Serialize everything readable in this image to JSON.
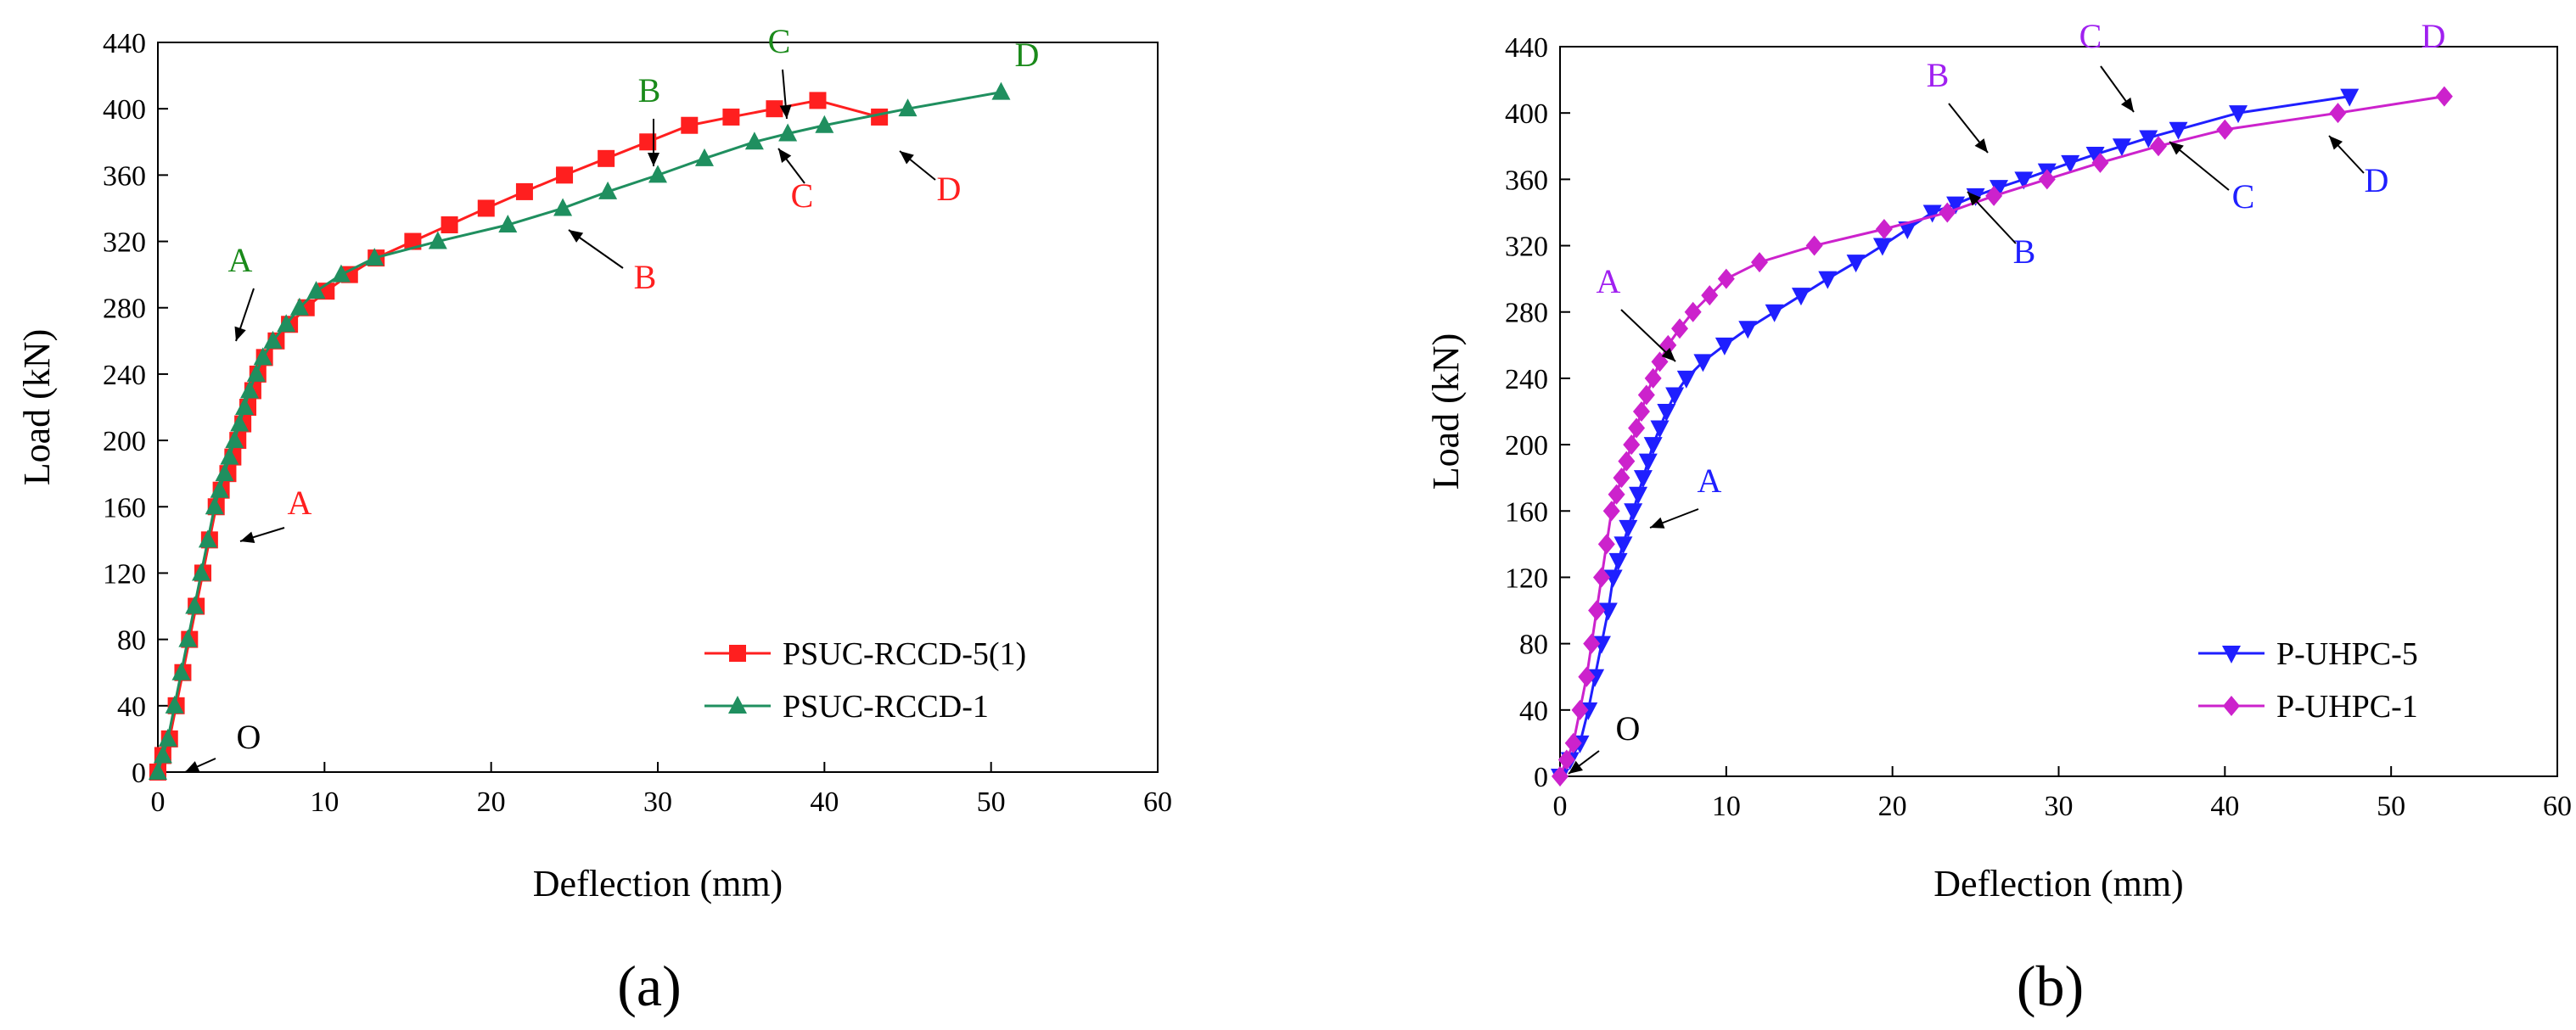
{
  "chart_data": [
    {
      "type": "line",
      "panel_label": "(a)",
      "xlabel": "Deflection (mm)",
      "ylabel": "Load (kN)",
      "xlim": [
        0,
        60
      ],
      "ylim": [
        0,
        440
      ],
      "xticks": [
        0,
        10,
        20,
        30,
        40,
        50,
        60
      ],
      "yticks": [
        0,
        40,
        80,
        120,
        160,
        200,
        240,
        280,
        320,
        360,
        400,
        440
      ],
      "xtick_labels": [
        "0",
        "10",
        "20",
        "30",
        "40",
        "50",
        "60"
      ],
      "ytick_labels": [
        "0",
        "40",
        "80",
        "120",
        "160",
        "200",
        "240",
        "280",
        "320",
        "360",
        "400",
        "440"
      ],
      "legend": [
        "PSUC-RCCD-5(1)",
        "PSUC-RCCD-1"
      ],
      "legend_position": "bottom-right",
      "series": [
        {
          "name": "PSUC-RCCD-5(1)",
          "color": "#ff1f1f",
          "marker": "square",
          "x": [
            0,
            0.3,
            0.7,
            1.1,
            1.5,
            1.9,
            2.3,
            2.7,
            3.1,
            3.5,
            3.8,
            4.2,
            4.5,
            4.8,
            5.1,
            5.4,
            5.7,
            6.0,
            6.4,
            7.1,
            7.9,
            8.9,
            10.1,
            11.5,
            13.1,
            15.3,
            17.5,
            19.7,
            22.0,
            24.4,
            26.9,
            29.4,
            31.9,
            34.4,
            37.0,
            39.6,
            43.3
          ],
          "y": [
            0,
            10,
            20,
            40,
            60,
            80,
            100,
            120,
            140,
            160,
            170,
            180,
            190,
            200,
            210,
            220,
            230,
            240,
            250,
            260,
            270,
            280,
            290,
            300,
            310,
            320,
            330,
            340,
            350,
            360,
            370,
            380,
            390,
            395,
            400,
            405,
            395
          ]
        },
        {
          "name": "PSUC-RCCD-1",
          "color": "#1f8f5f",
          "marker": "triangle",
          "x": [
            0,
            0.3,
            0.6,
            1.0,
            1.4,
            1.8,
            2.2,
            2.6,
            3.0,
            3.4,
            3.7,
            4.0,
            4.3,
            4.6,
            4.9,
            5.2,
            5.5,
            5.9,
            6.3,
            6.9,
            7.7,
            8.5,
            9.5,
            11.0,
            13.0,
            16.8,
            21.0,
            24.3,
            27.0,
            30.0,
            32.8,
            35.8,
            37.8,
            40.0,
            45.0,
            50.6
          ],
          "y": [
            0,
            10,
            20,
            40,
            60,
            80,
            100,
            120,
            140,
            160,
            170,
            180,
            190,
            200,
            210,
            220,
            230,
            240,
            250,
            260,
            270,
            280,
            290,
            300,
            310,
            320,
            330,
            340,
            350,
            360,
            370,
            380,
            385,
            390,
            400,
            410
          ]
        }
      ],
      "annotations": [
        {
          "text": "A",
          "series": "PSUC-RCCD-1",
          "color": "#1a8a1a",
          "x": 6.2,
          "y": 265
        },
        {
          "text": "A",
          "series": "PSUC-RCCD-5(1)",
          "color": "#ff1f1f",
          "x": 4.5,
          "y": 145
        },
        {
          "text": "B",
          "series": "PSUC-RCCD-1",
          "color": "#1a8a1a",
          "x": 30.0,
          "y": 363
        },
        {
          "text": "B",
          "series": "PSUC-RCCD-5(1)",
          "color": "#ff1f1f",
          "x": 26.0,
          "y": 325
        },
        {
          "text": "C",
          "series": "PSUC-RCCD-1",
          "color": "#1a8a1a",
          "x": 37.6,
          "y": 386
        },
        {
          "text": "C",
          "series": "PSUC-RCCD-5(1)",
          "color": "#ff1f1f",
          "x": 38.0,
          "y": 378
        },
        {
          "text": "D",
          "series": "PSUC-RCCD-1",
          "color": "#1a8a1a",
          "x": 50.8,
          "y": 412
        },
        {
          "text": "D",
          "series": "PSUC-RCCD-5(1)",
          "color": "#ff1f1f",
          "x": 45.4,
          "y": 396
        },
        {
          "text": "O",
          "series": "origin",
          "color": "#000000",
          "x": 1.4,
          "y": 5
        }
      ]
    },
    {
      "type": "line",
      "panel_label": "(b)",
      "xlabel": "Deflection (mm)",
      "ylabel": "Load (kN)",
      "xlim": [
        0,
        60
      ],
      "ylim": [
        0,
        440
      ],
      "xticks": [
        0,
        10,
        20,
        30,
        40,
        50,
        60
      ],
      "yticks": [
        0,
        40,
        80,
        120,
        160,
        200,
        240,
        280,
        320,
        360,
        400,
        440
      ],
      "xtick_labels": [
        "0",
        "10",
        "20",
        "30",
        "40",
        "50",
        "60"
      ],
      "ytick_labels": [
        "0",
        "40",
        "80",
        "120",
        "160",
        "200",
        "240",
        "280",
        "320",
        "360",
        "400",
        "440"
      ],
      "legend": [
        "P-UHPC-5",
        "P-UHPC-1"
      ],
      "legend_position": "bottom-right",
      "series": [
        {
          "name": "P-UHPC-5",
          "color": "#1f1fff",
          "marker": "triangle-down",
          "x": [
            0,
            0.6,
            1.2,
            1.7,
            2.1,
            2.5,
            2.9,
            3.2,
            3.5,
            3.8,
            4.1,
            4.4,
            4.7,
            5.0,
            5.3,
            5.6,
            6.0,
            6.4,
            6.9,
            7.6,
            8.6,
            9.9,
            11.3,
            12.9,
            14.5,
            16.1,
            17.8,
            19.4,
            20.9,
            22.4,
            23.8,
            25.0,
            26.4,
            27.9,
            29.3,
            30.7,
            32.2,
            33.8,
            35.4,
            37.2,
            40.8,
            47.5
          ],
          "y": [
            0,
            10,
            20,
            40,
            60,
            80,
            100,
            120,
            130,
            140,
            150,
            160,
            170,
            180,
            190,
            200,
            210,
            220,
            230,
            240,
            250,
            260,
            270,
            280,
            290,
            300,
            310,
            320,
            330,
            340,
            345,
            350,
            355,
            360,
            365,
            370,
            375,
            380,
            385,
            390,
            400,
            410
          ]
        },
        {
          "name": "P-UHPC-1",
          "color": "#cc22cc",
          "marker": "diamond",
          "x": [
            0,
            0.4,
            0.8,
            1.2,
            1.6,
            1.9,
            2.2,
            2.5,
            2.8,
            3.1,
            3.4,
            3.7,
            4.0,
            4.3,
            4.6,
            4.9,
            5.2,
            5.6,
            6.0,
            6.5,
            7.2,
            8.0,
            9.0,
            10.0,
            12.0,
            15.3,
            19.5,
            23.3,
            26.1,
            29.3,
            32.5,
            36.0,
            40.0,
            46.8,
            53.2
          ],
          "y": [
            0,
            10,
            20,
            40,
            60,
            80,
            100,
            120,
            140,
            160,
            170,
            180,
            190,
            200,
            210,
            220,
            230,
            240,
            250,
            260,
            270,
            280,
            290,
            300,
            310,
            320,
            330,
            340,
            350,
            360,
            370,
            380,
            390,
            400,
            410
          ]
        }
      ],
      "annotations": [
        {
          "text": "A",
          "series": "P-UHPC-1",
          "color": "#a020f0",
          "x": 5.0,
          "y": 245
        },
        {
          "text": "A",
          "series": "P-UHPC-5",
          "color": "#1f1fff",
          "x": 5.8,
          "y": 155
        },
        {
          "text": "B",
          "series": "P-UHPC-1",
          "color": "#a020f0",
          "x": 25.8,
          "y": 360
        },
        {
          "text": "B",
          "series": "P-UHPC-5",
          "color": "#1f1fff",
          "x": 25.0,
          "y": 348
        },
        {
          "text": "C",
          "series": "P-UHPC-1",
          "color": "#a020f0",
          "x": 35.5,
          "y": 392
        },
        {
          "text": "C",
          "series": "P-UHPC-5",
          "color": "#1f1fff",
          "x": 37.2,
          "y": 386
        },
        {
          "text": "D",
          "series": "P-UHPC-1",
          "color": "#a020f0",
          "x": 52.5,
          "y": 420
        },
        {
          "text": "D",
          "series": "P-UHPC-5",
          "color": "#1f1fff",
          "x": 47.0,
          "y": 408
        },
        {
          "text": "O",
          "series": "origin",
          "color": "#000000",
          "x": 1.2,
          "y": 6
        }
      ]
    }
  ]
}
